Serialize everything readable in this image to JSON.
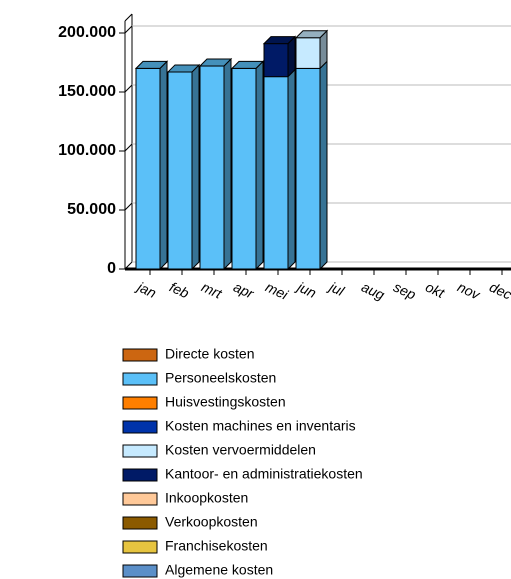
{
  "chart_data": {
    "type": "bar",
    "stacked": true,
    "categories": [
      "jan",
      "feb",
      "mrt",
      "apr",
      "mei",
      "jun",
      "jul",
      "aug",
      "sep",
      "okt",
      "nov",
      "dec"
    ],
    "series": [
      {
        "name": "Directe kosten",
        "color": "#cc6611",
        "values": [
          0,
          0,
          0,
          0,
          0,
          0,
          0,
          0,
          0,
          0,
          0,
          0
        ]
      },
      {
        "name": "Personeelskosten",
        "color": "#5bc0f8",
        "values": [
          170000,
          167000,
          172000,
          170000,
          163000,
          170000,
          0,
          0,
          0,
          0,
          0,
          0
        ]
      },
      {
        "name": "Huisvestingskosten",
        "color": "#ff7f00",
        "values": [
          0,
          0,
          0,
          0,
          0,
          0,
          0,
          0,
          0,
          0,
          0,
          0
        ]
      },
      {
        "name": "Kosten machines en inventaris",
        "color": "#0033aa",
        "values": [
          0,
          0,
          0,
          0,
          0,
          0,
          0,
          0,
          0,
          0,
          0,
          0
        ]
      },
      {
        "name": "Kosten vervoermiddelen",
        "color": "#c6eaff",
        "values": [
          0,
          0,
          0,
          0,
          0,
          26000,
          0,
          0,
          0,
          0,
          0,
          0
        ]
      },
      {
        "name": "Kantoor- en administratiekosten",
        "color": "#001a66",
        "values": [
          0,
          0,
          0,
          0,
          28000,
          0,
          0,
          0,
          0,
          0,
          0,
          0
        ]
      },
      {
        "name": "Inkoopkosten",
        "color": "#ffc999",
        "values": [
          0,
          0,
          0,
          0,
          0,
          0,
          0,
          0,
          0,
          0,
          0,
          0
        ]
      },
      {
        "name": "Verkoopkosten",
        "color": "#8b5a00",
        "values": [
          0,
          0,
          0,
          0,
          0,
          0,
          0,
          0,
          0,
          0,
          0,
          0
        ]
      },
      {
        "name": "Franchisekosten",
        "color": "#e6c440",
        "values": [
          0,
          0,
          0,
          0,
          0,
          0,
          0,
          0,
          0,
          0,
          0,
          0
        ]
      },
      {
        "name": "Algemene kosten",
        "color": "#5b8fc8",
        "values": [
          0,
          0,
          0,
          0,
          0,
          0,
          0,
          0,
          0,
          0,
          0,
          0
        ]
      }
    ],
    "ylim": [
      0,
      200000
    ],
    "yticks": [
      0,
      {
        "value": 50000,
        "label": "50.000"
      },
      {
        "value": 100000,
        "label": "100.000"
      },
      {
        "value": 150000,
        "label": "150.000"
      },
      {
        "value": 200000,
        "label": "200.000"
      }
    ],
    "grid": true
  }
}
